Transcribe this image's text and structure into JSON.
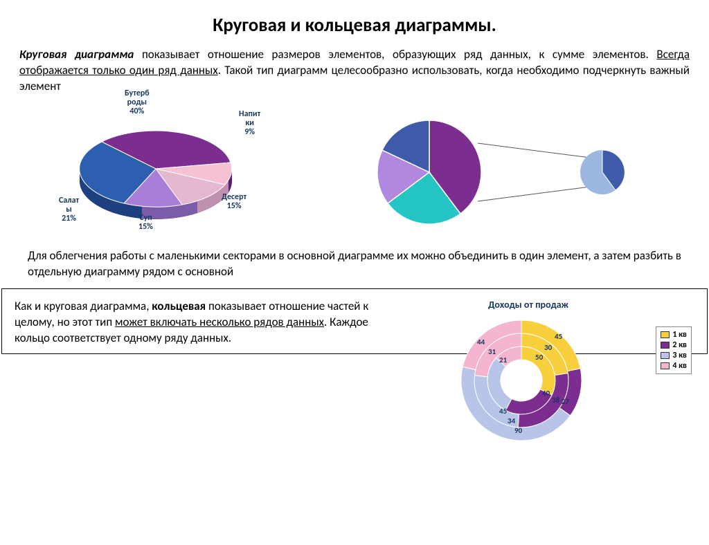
{
  "title": "Круговая и кольцевая диаграммы.",
  "para1_bold": "Круговая диаграмма",
  "para1_a": " показывает отношение размеров элементов, образующих ряд данных, к сумме элементов. ",
  "para1_u": "Всегда отображается только один ряд данных",
  "para1_b": ". Такой тип диаграмм целесообразно использовать, когда необходимо подчеркнуть важный элемент",
  "pie3d": {
    "labels": {
      "buterbrody": "Бутерб\nроды\n40%",
      "napitki": "Напит\nки\n9%",
      "desert": "Десерт\n15%",
      "sup": "Суп\n15%",
      "salaty": "Салат\nы\n21%"
    },
    "slices": [
      {
        "label": "Бутерброды",
        "value": 40,
        "color": "#7b2d90"
      },
      {
        "label": "Салаты",
        "value": 21,
        "color": "#2d5fb0"
      },
      {
        "label": "Суп",
        "value": 15,
        "color": "#a97ed8"
      },
      {
        "label": "Десерт",
        "value": 15,
        "color": "#e6b8d0"
      },
      {
        "label": "Напитки",
        "value": 9,
        "color": "#f5c2d4"
      }
    ]
  },
  "pie_bar": {
    "main_slices": [
      {
        "value": 40,
        "color": "#7b2d90"
      },
      {
        "value": 25,
        "color": "#25c5c5"
      },
      {
        "value": 20,
        "color": "#b088e0"
      },
      {
        "value": 15,
        "color": "#3d5ba8"
      }
    ],
    "sub_slices": [
      {
        "value": 60,
        "color": "#3d5ba8"
      },
      {
        "value": 40,
        "color": "#9db8e0"
      }
    ]
  },
  "para2": "Для облегчения работы с маленькими секторами в основной диаграмме их можно объединить в один элемент, а затем разбить в отдельную диаграмму рядом с основной",
  "para3_a": "Как и круговая диаграмма, ",
  "para3_bold": "кольцевая",
  "para3_b": " показывает  отношение частей к целому, но этот тип ",
  "para3_u": "может включать несколько рядов данных",
  "para3_c": ". Каждое кольцо соответствует одному ряду данных.",
  "doughnut": {
    "title": "Доходы от продаж",
    "legend": [
      {
        "label": "1 кв",
        "color": "#f8d03e"
      },
      {
        "label": "2 кв",
        "color": "#7b2d90"
      },
      {
        "label": "3 кв",
        "color": "#b8c5e8"
      },
      {
        "label": "4 кв",
        "color": "#f5b5d0"
      }
    ],
    "rings": [
      {
        "values": [
          50,
          40,
          45,
          21
        ],
        "colors": [
          "#f8d03e",
          "#7b2d90",
          "#b8c5e8",
          "#f5b5d0"
        ]
      },
      {
        "values": [
          30,
          38,
          34,
          31
        ],
        "colors": [
          "#f8d03e",
          "#7b2d90",
          "#b8c5e8",
          "#f5b5d0"
        ]
      },
      {
        "values": [
          45,
          27,
          90,
          44
        ],
        "colors": [
          "#f8d03e",
          "#7b2d90",
          "#b8c5e8",
          "#f5b5d0"
        ]
      }
    ],
    "data_labels": {
      "r3_q1": "45",
      "r3_q2": "27",
      "r3_q3": "90",
      "r3_q4": "44",
      "r2_q1": "30",
      "r2_q2": "38",
      "r2_q3": "34",
      "r2_q4": "31",
      "r1_q1": "50",
      "r1_q2": "40",
      "r1_q3": "45",
      "r1_q4": "21"
    }
  }
}
